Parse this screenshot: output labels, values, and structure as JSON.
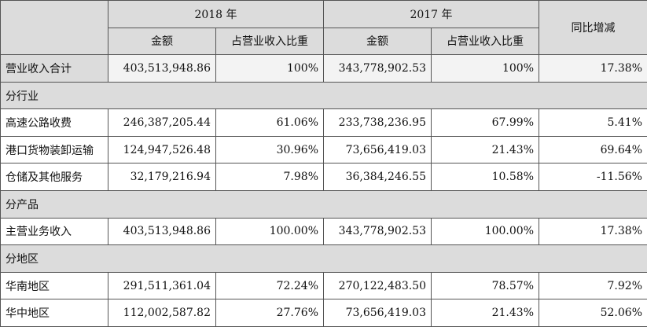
{
  "header": {
    "year_2018": "2018 年",
    "year_2017": "2017 年",
    "yoy": "同比增减",
    "col_amount_2018": "金额",
    "col_ratio_2018": "占营业收入比重",
    "col_amount_2017": "金额",
    "col_ratio_2017": "占营业收入比重"
  },
  "total": {
    "label": "营业收入合计",
    "amount_2018": "403,513,948.86",
    "ratio_2018": "100%",
    "amount_2017": "343,778,902.53",
    "ratio_2017": "100%",
    "yoy": "17.38%"
  },
  "sections": [
    {
      "title": "分行业",
      "rows": [
        {
          "label": "高速公路收费",
          "amount_2018": "246,387,205.44",
          "ratio_2018": "61.06%",
          "amount_2017": "233,738,236.95",
          "ratio_2017": "67.99%",
          "yoy": "5.41%"
        },
        {
          "label": "港口货物装卸运输",
          "amount_2018": "124,947,526.48",
          "ratio_2018": "30.96%",
          "amount_2017": "73,656,419.03",
          "ratio_2017": "21.43%",
          "yoy": "69.64%"
        },
        {
          "label": "仓储及其他服务",
          "amount_2018": "32,179,216.94",
          "ratio_2018": "7.98%",
          "amount_2017": "36,384,246.55",
          "ratio_2017": "10.58%",
          "yoy": "-11.56%"
        }
      ]
    },
    {
      "title": "分产品",
      "rows": [
        {
          "label": "主营业务收入",
          "amount_2018": "403,513,948.86",
          "ratio_2018": "100.00%",
          "amount_2017": "343,778,902.53",
          "ratio_2017": "100.00%",
          "yoy": "17.38%"
        }
      ]
    },
    {
      "title": "分地区",
      "rows": [
        {
          "label": "华南地区",
          "amount_2018": "291,511,361.04",
          "ratio_2018": "72.24%",
          "amount_2017": "270,122,483.50",
          "ratio_2017": "78.57%",
          "yoy": "7.92%"
        },
        {
          "label": "华中地区",
          "amount_2018": "112,002,587.82",
          "ratio_2018": "27.76%",
          "amount_2017": "73,656,419.03",
          "ratio_2017": "21.43%",
          "yoy": "52.06%"
        }
      ]
    }
  ]
}
